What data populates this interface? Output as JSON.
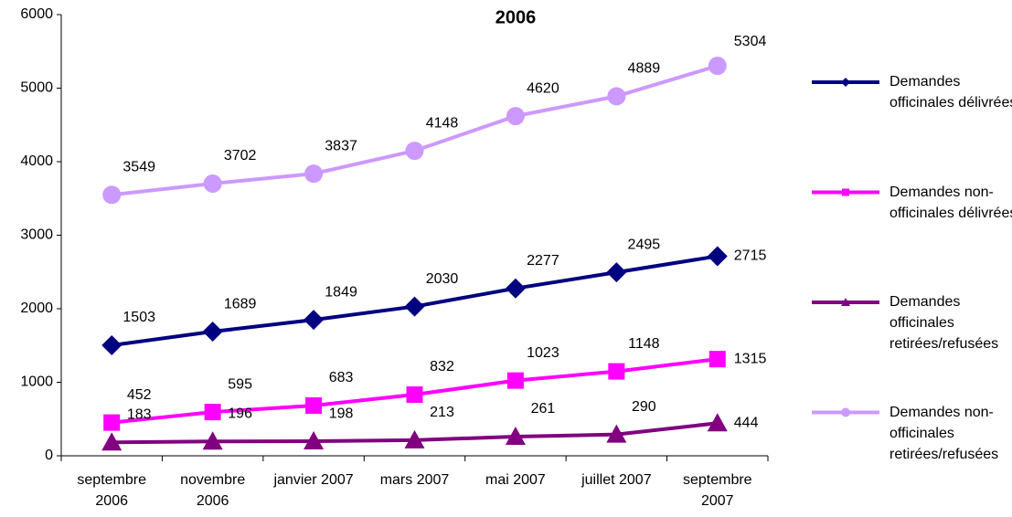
{
  "chart_data": {
    "type": "line",
    "title": "2006",
    "categories": [
      "septembre 2006",
      "novembre 2006",
      "janvier 2007",
      "mars 2007",
      "mai 2007",
      "juillet 2007",
      "septembre 2007"
    ],
    "series": [
      {
        "name": "Demandes officinales délivrées",
        "color": "#000080",
        "marker": "diamond",
        "values": [
          1503,
          1689,
          1849,
          2030,
          2277,
          2495,
          2715
        ]
      },
      {
        "name": "Demandes non-officinales délivrées",
        "color": "#ff00ff",
        "marker": "square",
        "values": [
          452,
          595,
          683,
          832,
          1023,
          1148,
          1315
        ]
      },
      {
        "name": "Demandes officinales retirées/refusées",
        "color": "#800080",
        "marker": "triangle",
        "values": [
          183,
          196,
          198,
          213,
          261,
          290,
          444
        ]
      },
      {
        "name": "Demandes non-officinales retirées/refusées",
        "color": "#cc99ff",
        "marker": "circle",
        "values": [
          3549,
          3702,
          3837,
          4148,
          4620,
          4889,
          5304
        ]
      }
    ],
    "ylim": [
      0,
      6000
    ],
    "yticks": [
      0,
      1000,
      2000,
      3000,
      4000,
      5000,
      6000
    ],
    "legend": "right"
  }
}
